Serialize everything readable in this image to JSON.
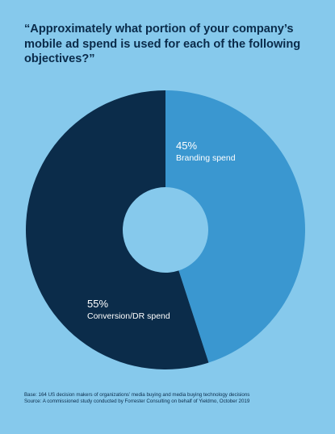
{
  "title": "“Approximately what portion of your company’s mobile ad spend is used for each of the following objectives?”",
  "colors": {
    "background": "#86c9ec",
    "branding": "#3a97d0",
    "conversion": "#0b2c4a",
    "text_dark": "#0a2b4a"
  },
  "chart_data": {
    "type": "pie",
    "title": "“Approximately what portion of your company’s mobile ad spend is used for each of the following objectives?”",
    "donut": true,
    "slices": [
      {
        "label": "Branding spend",
        "value": 45,
        "value_label": "45%",
        "color": "#3a97d0"
      },
      {
        "label": "Conversion/DR spend",
        "value": 55,
        "value_label": "55%",
        "color": "#0b2c4a"
      }
    ]
  },
  "footnote": {
    "base": "Base: 164 US decision makers of organizations’ media buying and media buying technology decisions",
    "source": "Source: A commissioned study conducted by Forrester Consulting on behalf of Yieldmo, October 2019"
  }
}
